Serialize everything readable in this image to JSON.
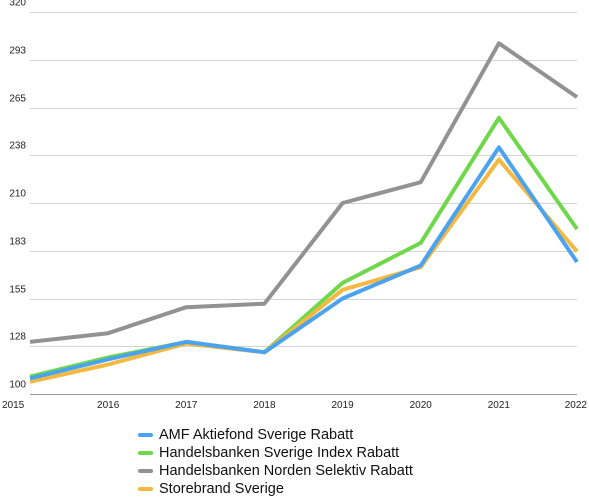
{
  "chart_data": {
    "type": "line",
    "title": "",
    "xlabel": "",
    "ylabel": "",
    "x": [
      "2015",
      "2016",
      "2017",
      "2018",
      "2019",
      "2020",
      "2021",
      "2022"
    ],
    "ylim": [
      100,
      320
    ],
    "yticks": [
      "100",
      "128",
      "155",
      "183",
      "210",
      "238",
      "265",
      "293",
      "320"
    ],
    "grid": "horizontal",
    "legend": "bottom",
    "series": [
      {
        "name": "AMF Aktiefond Sverige Rabatt",
        "color": "#4ba3f0",
        "values": [
          109,
          120,
          130,
          124,
          155,
          174,
          242,
          176
        ]
      },
      {
        "name": "Handelsbanken Sverige Index Rabatt",
        "color": "#6fd84a",
        "values": [
          110,
          121,
          130,
          124,
          164,
          187,
          259,
          195
        ]
      },
      {
        "name": "Handelsbanken Norden Selektiv Rabatt",
        "color": "#929292",
        "values": [
          130,
          135,
          150,
          152,
          210,
          222,
          302,
          271
        ]
      },
      {
        "name": "Storebrand Sverige",
        "color": "#f5b942",
        "values": [
          107,
          117,
          129,
          124,
          160,
          173,
          235,
          182
        ]
      }
    ]
  }
}
